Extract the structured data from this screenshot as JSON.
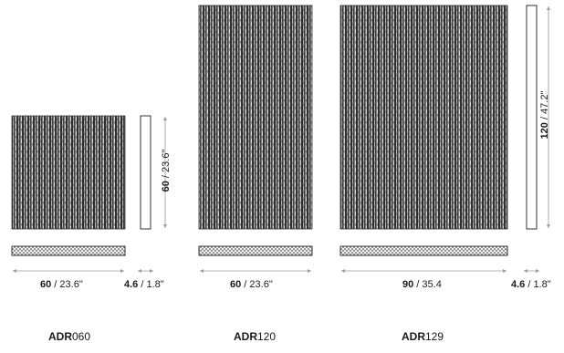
{
  "colors": {
    "panel_dark": "#3a3a3a",
    "panel_light": "#d9d9d9",
    "line": "#333333",
    "dim_line": "#9a9a9a"
  },
  "products": [
    {
      "name_bold": "ADR",
      "name_rest": "060",
      "width_cm": "60",
      "width_in": "23.6\"",
      "height_cm": "60",
      "height_in": "23.6\"",
      "depth_cm": "4.6",
      "depth_in": "1.8\""
    },
    {
      "name_bold": "ADR",
      "name_rest": "120",
      "width_cm": "60",
      "width_in": "23.6\""
    },
    {
      "name_bold": "ADR",
      "name_rest": "129",
      "width_cm": "90",
      "width_in": "35.4",
      "height_cm": "120",
      "height_in": "47.2\"",
      "depth_cm": "4.6",
      "depth_in": "1.8\""
    }
  ],
  "separator": " / "
}
